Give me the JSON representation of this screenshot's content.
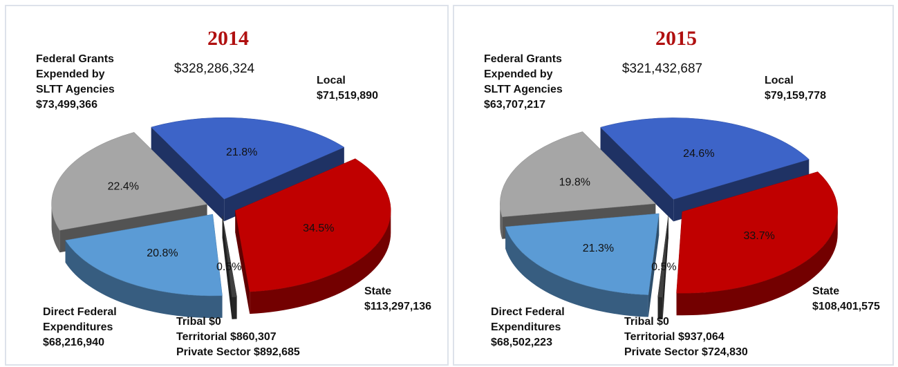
{
  "chart_data": [
    {
      "type": "pie3d",
      "title": "2014",
      "subtitle": "$328,286,324",
      "categories": [
        [
          "Local",
          "$71,519,890"
        ],
        [
          "State",
          "$113,297,136"
        ],
        [
          "Tribal $0",
          "Territorial $860,307",
          "Private Sector $892,685"
        ],
        [
          "Direct Federal",
          "Expenditures",
          "$68,216,940"
        ],
        [
          "Federal Grants",
          "Expended by",
          "SLTT Agencies",
          "$73,499,366"
        ]
      ],
      "values": [
        21.8,
        34.5,
        0.5,
        20.8,
        22.4
      ],
      "value_labels": [
        "21.8%",
        "34.5%",
        "0.5%",
        "20.8%",
        "22.4%"
      ],
      "colors": [
        "#3d64c8",
        "#c00000",
        "#404040",
        "#5b9bd5",
        "#a6a6a6"
      ]
    },
    {
      "type": "pie3d",
      "title": "2015",
      "subtitle": "$321,432,687",
      "categories": [
        [
          "Local",
          "$79,159,778"
        ],
        [
          "State",
          "$108,401,575"
        ],
        [
          "Tribal $0",
          "Territorial $937,064",
          "Private Sector $724,830"
        ],
        [
          "Direct Federal",
          "Expenditures",
          "$68,502,223"
        ],
        [
          "Federal Grants",
          "Expended by",
          "SLTT Agencies",
          "$63,707,217"
        ]
      ],
      "values": [
        24.6,
        33.7,
        0.5,
        21.3,
        19.8
      ],
      "value_labels": [
        "24.6%",
        "33.7%",
        "0.5%",
        "21.3%",
        "19.8%"
      ],
      "colors": [
        "#3d64c8",
        "#c00000",
        "#404040",
        "#5b9bd5",
        "#a6a6a6"
      ]
    }
  ]
}
